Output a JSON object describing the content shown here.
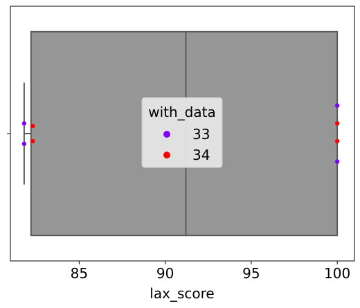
{
  "chart_data": {
    "type": "boxplot-with-swarm",
    "xlabel": "lax_score",
    "ylabel": "",
    "xlim": [
      81.0,
      101.0
    ],
    "xticks": [
      85,
      90,
      95,
      100
    ],
    "box": {
      "whisker_low": 81.8,
      "q1": 82.2,
      "median": 91.2,
      "q3": 100.0,
      "whisker_high": 100.0,
      "fill_color": "#969696",
      "line_color": "#5a5a5a"
    },
    "legend": {
      "title": "with_data",
      "position": "center",
      "entries": [
        {
          "label": "33",
          "color": "#7f00ff"
        },
        {
          "label": "34",
          "color": "#ff0000"
        }
      ]
    },
    "series": [
      {
        "name": "33",
        "color": "#7f00ff",
        "points": [
          {
            "x": 81.8,
            "y": 0.96
          },
          {
            "x": 81.8,
            "y": 1.04
          },
          {
            "x": 100.0,
            "y": 0.89
          },
          {
            "x": 100.0,
            "y": 1.11
          }
        ]
      },
      {
        "name": "34",
        "color": "#ff0000",
        "points": [
          {
            "x": 82.3,
            "y": 0.97
          },
          {
            "x": 82.3,
            "y": 1.03
          },
          {
            "x": 100.0,
            "y": 0.96
          },
          {
            "x": 100.0,
            "y": 1.03
          }
        ]
      }
    ],
    "grid": false
  }
}
